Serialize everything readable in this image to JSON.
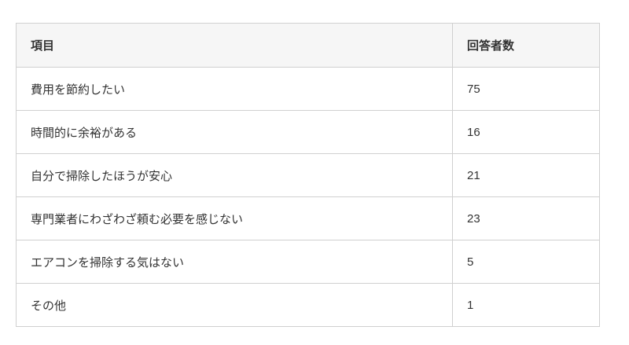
{
  "chart_data": {
    "type": "table",
    "title": "",
    "columns": [
      "項目",
      "回答者数"
    ],
    "categories": [
      "費用を節約したい",
      "時間的に余裕がある",
      "自分で掃除したほうが安心",
      "専門業者にわざわざ頼む必要を感じない",
      "エアコンを掃除する気はない",
      "その他"
    ],
    "values": [
      75,
      16,
      21,
      23,
      5,
      1
    ]
  },
  "colors": {
    "header_background": "#f6f6f6",
    "border": "#d0d0d0",
    "text": "#333333",
    "page_background": "#ffffff"
  }
}
